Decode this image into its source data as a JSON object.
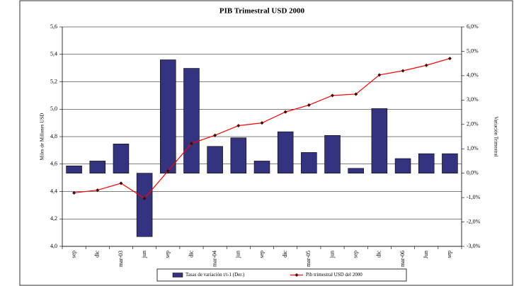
{
  "chart_data": {
    "type": "bar_line",
    "title": "PIB Trimestral USD 2000",
    "ylabel": "Miles de Millones USD",
    "y2label": "Variación Trimestral",
    "categories": [
      "sep",
      "dic",
      "mar-03",
      "jun",
      "sep",
      "dic",
      "mar-04",
      "jun",
      "sep",
      "dic",
      "mar-05",
      "jun",
      "sep",
      "dic",
      "mar-06",
      "Jun",
      "sep"
    ],
    "series": [
      {
        "name": "Tasas de variación t/t-1 (Der.)",
        "type": "bar",
        "axis": "y2",
        "color": "#333380",
        "values": [
          0.3,
          0.5,
          1.2,
          -2.6,
          4.65,
          4.3,
          1.1,
          1.45,
          0.5,
          1.7,
          0.85,
          1.55,
          0.2,
          2.65,
          0.6,
          0.8,
          0.8
        ]
      },
      {
        "name": "Pib trimestral USD del 2000",
        "type": "line",
        "axis": "y",
        "color": "#ff0000",
        "values": [
          4.39,
          4.41,
          4.46,
          4.35,
          4.55,
          4.75,
          4.81,
          4.88,
          4.9,
          4.98,
          5.03,
          5.1,
          5.11,
          5.25,
          5.28,
          5.32,
          5.37
        ]
      }
    ],
    "ylim": [
      4.0,
      5.6
    ],
    "yticks": [
      {
        "value": 4.0,
        "label": "4,0"
      },
      {
        "value": 4.2,
        "label": "4,2"
      },
      {
        "value": 4.4,
        "label": "4,4"
      },
      {
        "value": 4.6,
        "label": "4,6"
      },
      {
        "value": 4.8,
        "label": "4,8"
      },
      {
        "value": 5.0,
        "label": "5,0"
      },
      {
        "value": 5.2,
        "label": "5,2"
      },
      {
        "value": 5.4,
        "label": "5,4"
      },
      {
        "value": 5.6,
        "label": "5,6"
      }
    ],
    "y2lim": [
      -3.0,
      6.0
    ],
    "y2ticks": [
      {
        "value": -3.0,
        "label": "-3,0%"
      },
      {
        "value": -2.0,
        "label": "-2,0%"
      },
      {
        "value": -1.0,
        "label": "-1,0%"
      },
      {
        "value": 0.0,
        "label": "0,0%"
      },
      {
        "value": 1.0,
        "label": "1,0%"
      },
      {
        "value": 2.0,
        "label": "2,0%"
      },
      {
        "value": 3.0,
        "label": "3,0%"
      },
      {
        "value": 4.0,
        "label": "4,0%"
      },
      {
        "value": 5.0,
        "label": "5,0%"
      },
      {
        "value": 6.0,
        "label": "6,0%"
      }
    ],
    "legend": "bottom"
  }
}
